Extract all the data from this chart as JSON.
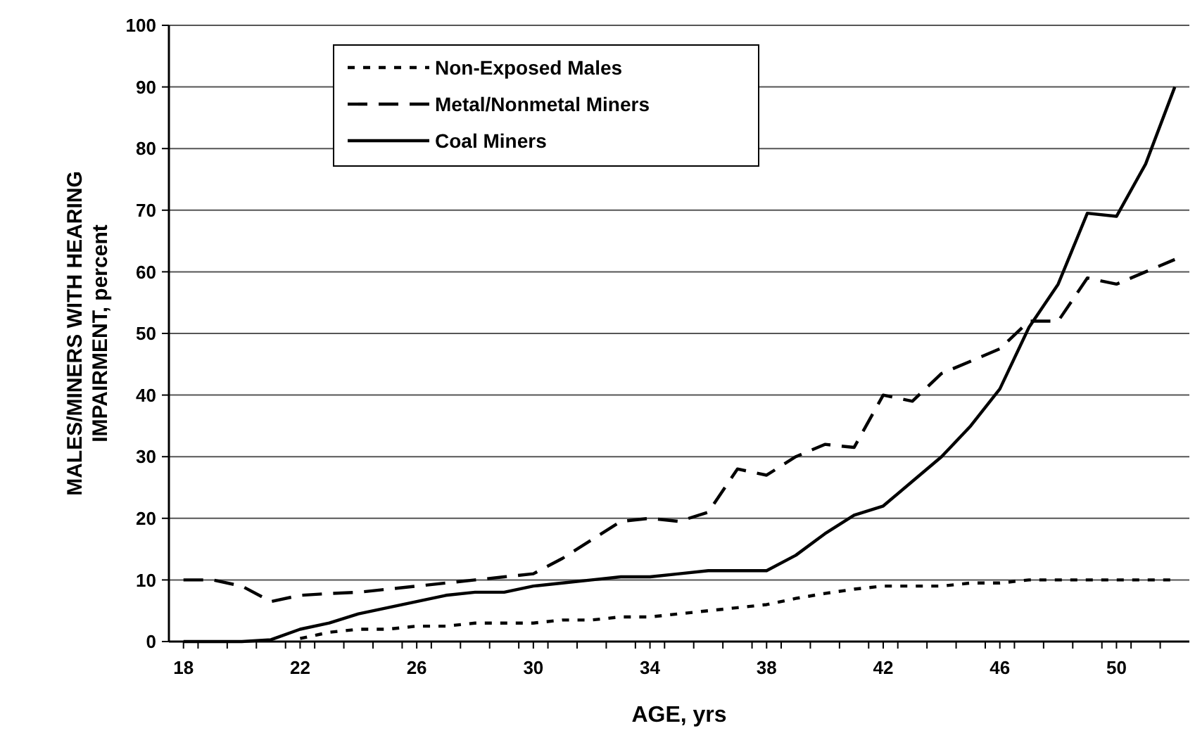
{
  "chart_data": {
    "type": "line",
    "xlabel": "AGE, yrs",
    "ylabel": "MALES/MINERS WITH HEARING IMPAIRMENT, percent",
    "x": [
      18,
      19,
      20,
      21,
      22,
      23,
      24,
      25,
      26,
      27,
      28,
      29,
      30,
      31,
      32,
      33,
      34,
      35,
      36,
      37,
      38,
      39,
      40,
      41,
      42,
      43,
      44,
      45,
      46,
      47,
      48,
      49,
      50,
      51,
      52
    ],
    "xlim": [
      17.5,
      52.5
    ],
    "xticks": [
      18,
      22,
      26,
      30,
      34,
      38,
      42,
      46,
      50,
      {
        "value": 18.5,
        "label": null
      },
      {
        "value": 19.5,
        "label": null
      },
      {
        "value": 20.5,
        "label": null
      },
      {
        "value": 21.5,
        "label": null
      },
      {
        "value": 22.5,
        "label": null
      },
      {
        "value": 23.5,
        "label": null
      },
      {
        "value": 24.5,
        "label": null
      },
      {
        "value": 25.5,
        "label": null
      },
      {
        "value": 26.5,
        "label": null
      },
      {
        "value": 27.5,
        "label": null
      },
      {
        "value": 28.5,
        "label": null
      },
      {
        "value": 29.5,
        "label": null
      },
      {
        "value": 30.5,
        "label": null
      },
      {
        "value": 31.5,
        "label": null
      },
      {
        "value": 32.5,
        "label": null
      },
      {
        "value": 33.5,
        "label": null
      },
      {
        "value": 34.5,
        "label": null
      },
      {
        "value": 35.5,
        "label": null
      },
      {
        "value": 36.5,
        "label": null
      },
      {
        "value": 37.5,
        "label": null
      },
      {
        "value": 38.5,
        "label": null
      },
      {
        "value": 39.5,
        "label": null
      },
      {
        "value": 40.5,
        "label": null
      },
      {
        "value": 41.5,
        "label": null
      },
      {
        "value": 42.5,
        "label": null
      },
      {
        "value": 43.5,
        "label": null
      },
      {
        "value": 44.5,
        "label": null
      },
      {
        "value": 45.5,
        "label": null
      },
      {
        "value": 46.5,
        "label": null
      },
      {
        "value": 47.5,
        "label": null
      },
      {
        "value": 48.5,
        "label": null
      },
      {
        "value": 49.5,
        "label": null
      },
      {
        "value": 50.5,
        "label": null
      },
      {
        "value": 51.5,
        "label": null
      }
    ],
    "ylim": [
      0,
      100
    ],
    "yticks": [
      0,
      10,
      20,
      30,
      40,
      50,
      60,
      70,
      80,
      90,
      100
    ],
    "grid": "y",
    "legend": "top left",
    "marker": "none",
    "series": [
      {
        "name": "Non-Exposed Males",
        "color": "#000000",
        "line_style": "dotted",
        "values": [
          null,
          null,
          null,
          null,
          0.5,
          1.5,
          2,
          2,
          2.5,
          2.5,
          3,
          3,
          3,
          3.5,
          3.5,
          4,
          4,
          4.5,
          5,
          5.5,
          6,
          7,
          7.8,
          8.5,
          9,
          9,
          9,
          9.5,
          9.5,
          10,
          10,
          10,
          10,
          10,
          10
        ]
      },
      {
        "name": "Metal/Nonmetal Miners",
        "color": "#000000",
        "line_style": "dashed",
        "values": [
          10,
          10,
          9,
          6.5,
          7.5,
          7.8,
          8,
          8.5,
          9,
          9.5,
          10,
          10.5,
          11,
          13.5,
          16.5,
          19.5,
          20,
          19.5,
          21,
          28,
          27,
          30,
          32,
          31.5,
          40,
          39,
          43.5,
          45.5,
          47.5,
          52,
          52,
          59,
          58,
          60,
          62
        ]
      },
      {
        "name": "Coal Miners",
        "color": "#000000",
        "line_style": "solid",
        "values": [
          0,
          0,
          0,
          0.3,
          2,
          3,
          4.5,
          5.5,
          6.5,
          7.5,
          8,
          8,
          9,
          9.5,
          10,
          10.5,
          10.5,
          11,
          11.5,
          11.5,
          11.5,
          14,
          17.5,
          20.5,
          22,
          26,
          30,
          35,
          41,
          51,
          58,
          69.5,
          69,
          77.5,
          90
        ]
      }
    ]
  }
}
